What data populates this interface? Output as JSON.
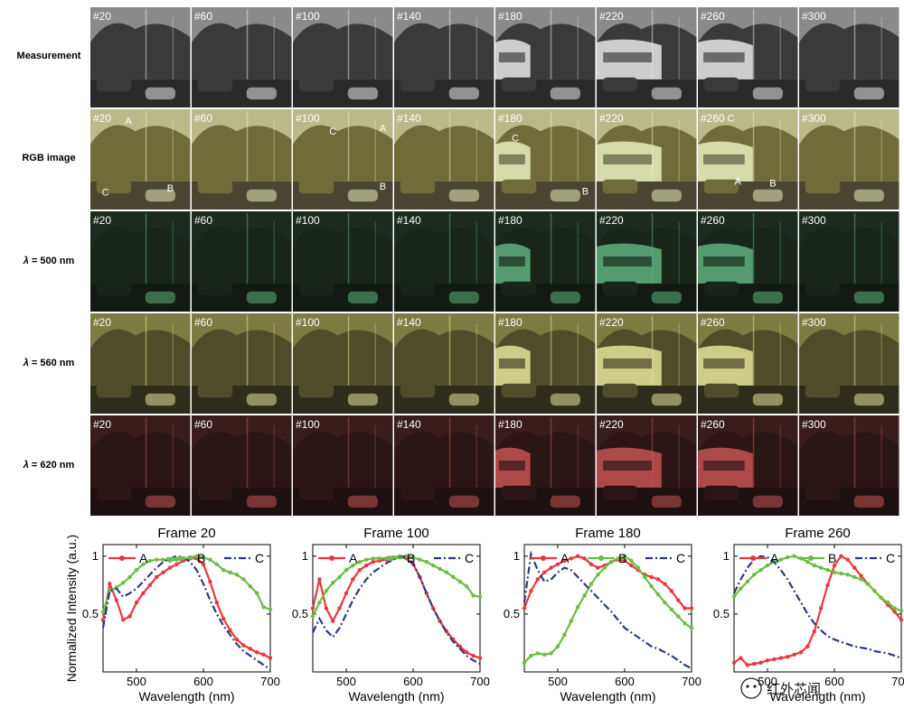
{
  "grid": {
    "row_labels": [
      {
        "pre": "Measurement",
        "lambda": "",
        "post": ""
      },
      {
        "pre": "RGB image",
        "lambda": "",
        "post": ""
      },
      {
        "pre": "",
        "lambda": "λ",
        "post": " = 500 nm"
      },
      {
        "pre": "",
        "lambda": "λ",
        "post": " = 560 nm"
      },
      {
        "pre": "",
        "lambda": "λ",
        "post": " = 620 nm"
      }
    ],
    "frame_labels": [
      "#20",
      "#60",
      "#100",
      "#140",
      "#180",
      "#220",
      "#260",
      "#300"
    ],
    "row_colors": [
      {
        "sky": "#8a8a8a",
        "tree": "#3a3a3a",
        "ground": "#2a2a2a",
        "bus": "#e8e8e8"
      },
      {
        "sky": "#b9b98a",
        "tree": "#6f6b3a",
        "ground": "#4a4530",
        "bus": "#e8efc0"
      },
      {
        "sky": "#1d2a1f",
        "tree": "#182518",
        "ground": "#121a13",
        "bus": "#5fb27d"
      },
      {
        "sky": "#7c7c42",
        "tree": "#4f4d29",
        "ground": "#2e2d1c",
        "bus": "#e3e39a"
      },
      {
        "sky": "#3a1c1c",
        "tree": "#2b1515",
        "ground": "#1d1010",
        "bus": "#c65252"
      }
    ],
    "rgb_point_labels": [
      {
        "col": 0,
        "text": "A",
        "fx": 0.38,
        "fy": 0.15
      },
      {
        "col": 0,
        "text": "B",
        "fx": 0.8,
        "fy": 0.82
      },
      {
        "col": 0,
        "text": "C",
        "fx": 0.15,
        "fy": 0.86
      },
      {
        "col": 2,
        "text": "C",
        "fx": 0.4,
        "fy": 0.25
      },
      {
        "col": 2,
        "text": "A",
        "fx": 0.9,
        "fy": 0.22
      },
      {
        "col": 2,
        "text": "B",
        "fx": 0.9,
        "fy": 0.8
      },
      {
        "col": 4,
        "text": "C",
        "fx": 0.2,
        "fy": 0.32
      },
      {
        "col": 4,
        "text": "B",
        "fx": 0.9,
        "fy": 0.85
      },
      {
        "col": 6,
        "text": "C",
        "fx": 0.33,
        "fy": 0.12
      },
      {
        "col": 6,
        "text": "A",
        "fx": 0.4,
        "fy": 0.75
      },
      {
        "col": 6,
        "text": "B",
        "fx": 0.75,
        "fy": 0.77
      }
    ]
  },
  "chart_data": [
    {
      "type": "line",
      "title": "Frame 20",
      "xlabel": "Wavelength (nm)",
      "ylabel": "Normalized Intensity (a.u.)",
      "xlim": [
        450,
        700
      ],
      "ylim": [
        0,
        1.1
      ],
      "xticks": [
        500,
        600,
        700
      ],
      "yticks": [
        0.5,
        1
      ],
      "series": [
        {
          "name": "A",
          "color": "#e8383d",
          "style": "solid-dots",
          "x": [
            450,
            460,
            470,
            480,
            490,
            500,
            510,
            520,
            530,
            540,
            550,
            560,
            570,
            580,
            590,
            600,
            610,
            620,
            630,
            640,
            650,
            660,
            670,
            680,
            690,
            700
          ],
          "y": [
            0.45,
            0.76,
            0.62,
            0.45,
            0.48,
            0.6,
            0.68,
            0.75,
            0.82,
            0.86,
            0.9,
            0.93,
            0.96,
            0.98,
            0.98,
            0.93,
            0.78,
            0.6,
            0.46,
            0.36,
            0.28,
            0.23,
            0.2,
            0.17,
            0.15,
            0.12
          ]
        },
        {
          "name": "B",
          "color": "#6cbd45",
          "style": "solid-dots",
          "x": [
            450,
            460,
            470,
            480,
            490,
            500,
            510,
            520,
            530,
            540,
            550,
            560,
            570,
            580,
            590,
            600,
            610,
            620,
            630,
            640,
            650,
            660,
            670,
            680,
            690,
            700
          ],
          "y": [
            0.52,
            0.7,
            0.73,
            0.77,
            0.82,
            0.88,
            0.93,
            0.96,
            0.97,
            0.97,
            0.96,
            0.97,
            0.98,
            0.99,
            1.0,
            0.99,
            0.97,
            0.93,
            0.88,
            0.86,
            0.84,
            0.8,
            0.74,
            0.68,
            0.56,
            0.54
          ]
        },
        {
          "name": "C",
          "color": "#2b3a86",
          "style": "dashdot",
          "x": [
            450,
            460,
            470,
            480,
            490,
            500,
            510,
            520,
            530,
            540,
            550,
            560,
            570,
            580,
            590,
            600,
            610,
            620,
            630,
            640,
            650,
            660,
            670,
            680,
            690,
            700
          ],
          "y": [
            0.38,
            0.7,
            0.72,
            0.65,
            0.68,
            0.72,
            0.78,
            0.84,
            0.9,
            0.95,
            0.98,
            1.0,
            0.99,
            0.95,
            0.88,
            0.76,
            0.62,
            0.5,
            0.4,
            0.32,
            0.24,
            0.18,
            0.14,
            0.1,
            0.06,
            0.02
          ]
        }
      ]
    },
    {
      "type": "line",
      "title": "Frame 100",
      "xlabel": "Wavelength (nm)",
      "ylabel": "",
      "xlim": [
        450,
        700
      ],
      "ylim": [
        0,
        1.1
      ],
      "xticks": [
        500,
        600,
        700
      ],
      "yticks": [
        0.5,
        1
      ],
      "series": [
        {
          "name": "A",
          "color": "#e8383d",
          "style": "solid-dots",
          "x": [
            450,
            460,
            470,
            480,
            490,
            500,
            510,
            520,
            530,
            540,
            550,
            560,
            570,
            580,
            590,
            600,
            610,
            620,
            630,
            640,
            650,
            660,
            670,
            680,
            690,
            700
          ],
          "y": [
            0.55,
            0.8,
            0.55,
            0.44,
            0.55,
            0.68,
            0.8,
            0.88,
            0.92,
            0.95,
            0.96,
            0.97,
            0.98,
            0.99,
            0.98,
            0.93,
            0.82,
            0.68,
            0.55,
            0.44,
            0.35,
            0.28,
            0.22,
            0.17,
            0.14,
            0.12
          ]
        },
        {
          "name": "B",
          "color": "#6cbd45",
          "style": "solid-dots",
          "x": [
            450,
            460,
            470,
            480,
            490,
            500,
            510,
            520,
            530,
            540,
            550,
            560,
            570,
            580,
            590,
            600,
            610,
            620,
            630,
            640,
            650,
            660,
            670,
            680,
            690,
            700
          ],
          "y": [
            0.48,
            0.6,
            0.7,
            0.77,
            0.82,
            0.88,
            0.92,
            0.95,
            0.97,
            0.98,
            0.98,
            0.98,
            0.99,
            1.0,
            1.0,
            0.99,
            0.97,
            0.95,
            0.92,
            0.89,
            0.86,
            0.82,
            0.78,
            0.74,
            0.66,
            0.65
          ]
        },
        {
          "name": "C",
          "color": "#2b3a86",
          "style": "dashdot",
          "x": [
            450,
            460,
            470,
            480,
            490,
            500,
            510,
            520,
            530,
            540,
            550,
            560,
            570,
            580,
            590,
            600,
            610,
            620,
            630,
            640,
            650,
            660,
            670,
            680,
            690,
            700
          ],
          "y": [
            0.34,
            0.46,
            0.36,
            0.3,
            0.38,
            0.5,
            0.62,
            0.72,
            0.8,
            0.86,
            0.9,
            0.94,
            0.97,
            0.99,
            1.0,
            0.94,
            0.82,
            0.68,
            0.55,
            0.44,
            0.34,
            0.26,
            0.2,
            0.14,
            0.1,
            0.07
          ]
        }
      ]
    },
    {
      "type": "line",
      "title": "Frame 180",
      "xlabel": "Wavelength (nm)",
      "ylabel": "",
      "xlim": [
        450,
        700
      ],
      "ylim": [
        0,
        1.1
      ],
      "xticks": [
        500,
        600,
        700
      ],
      "yticks": [
        0.5,
        1
      ],
      "series": [
        {
          "name": "A",
          "color": "#e8383d",
          "style": "solid-dots",
          "x": [
            450,
            460,
            470,
            480,
            490,
            500,
            510,
            520,
            530,
            540,
            550,
            560,
            570,
            580,
            590,
            600,
            610,
            620,
            630,
            640,
            650,
            660,
            670,
            680,
            690,
            700
          ],
          "y": [
            0.55,
            0.7,
            0.8,
            0.86,
            0.9,
            0.93,
            0.96,
            0.98,
            1.0,
            0.98,
            0.93,
            0.9,
            0.92,
            0.95,
            0.97,
            0.96,
            0.92,
            0.88,
            0.84,
            0.82,
            0.8,
            0.76,
            0.7,
            0.62,
            0.55,
            0.55
          ]
        },
        {
          "name": "B",
          "color": "#6cbd45",
          "style": "solid-dots",
          "x": [
            450,
            460,
            470,
            480,
            490,
            500,
            510,
            520,
            530,
            540,
            550,
            560,
            570,
            580,
            590,
            600,
            610,
            620,
            630,
            640,
            650,
            660,
            670,
            680,
            690,
            700
          ],
          "y": [
            0.08,
            0.14,
            0.16,
            0.15,
            0.16,
            0.22,
            0.32,
            0.44,
            0.56,
            0.66,
            0.76,
            0.84,
            0.9,
            0.95,
            0.98,
            1.0,
            0.96,
            0.9,
            0.82,
            0.74,
            0.67,
            0.6,
            0.54,
            0.48,
            0.42,
            0.38
          ]
        },
        {
          "name": "C",
          "color": "#2b3a86",
          "style": "dashdot",
          "x": [
            450,
            460,
            470,
            480,
            490,
            500,
            510,
            520,
            530,
            540,
            550,
            560,
            570,
            580,
            590,
            600,
            610,
            620,
            630,
            640,
            650,
            660,
            670,
            680,
            690,
            700
          ],
          "y": [
            0.6,
            1.02,
            0.88,
            0.78,
            0.8,
            0.86,
            0.9,
            0.88,
            0.82,
            0.76,
            0.7,
            0.64,
            0.58,
            0.52,
            0.45,
            0.38,
            0.34,
            0.3,
            0.26,
            0.22,
            0.2,
            0.17,
            0.14,
            0.1,
            0.06,
            0.03
          ]
        }
      ]
    },
    {
      "type": "line",
      "title": "Frame 260",
      "xlabel": "Wavelength (nm)",
      "ylabel": "",
      "xlim": [
        450,
        700
      ],
      "ylim": [
        0,
        1.1
      ],
      "xticks": [
        500,
        600,
        700
      ],
      "yticks": [
        0.5,
        1
      ],
      "series": [
        {
          "name": "A",
          "color": "#e8383d",
          "style": "solid-dots",
          "x": [
            450,
            460,
            470,
            480,
            490,
            500,
            510,
            520,
            530,
            540,
            550,
            560,
            570,
            580,
            590,
            600,
            610,
            620,
            630,
            640,
            650,
            660,
            670,
            680,
            690,
            700
          ],
          "y": [
            0.08,
            0.12,
            0.06,
            0.07,
            0.08,
            0.1,
            0.11,
            0.12,
            0.13,
            0.15,
            0.17,
            0.22,
            0.35,
            0.55,
            0.75,
            0.92,
            1.0,
            0.97,
            0.9,
            0.83,
            0.76,
            0.7,
            0.64,
            0.58,
            0.52,
            0.45
          ]
        },
        {
          "name": "B",
          "color": "#6cbd45",
          "style": "solid-dots",
          "x": [
            450,
            460,
            470,
            480,
            490,
            500,
            510,
            520,
            530,
            540,
            550,
            560,
            570,
            580,
            590,
            600,
            610,
            620,
            630,
            640,
            650,
            660,
            670,
            680,
            690,
            700
          ],
          "y": [
            0.65,
            0.72,
            0.78,
            0.84,
            0.88,
            0.92,
            0.95,
            0.97,
            0.99,
            1.0,
            0.98,
            0.95,
            0.92,
            0.9,
            0.88,
            0.86,
            0.85,
            0.84,
            0.82,
            0.8,
            0.76,
            0.7,
            0.64,
            0.6,
            0.55,
            0.53
          ]
        },
        {
          "name": "C",
          "color": "#2b3a86",
          "style": "dashdot",
          "x": [
            450,
            460,
            470,
            480,
            490,
            500,
            510,
            520,
            530,
            540,
            550,
            560,
            570,
            580,
            590,
            600,
            610,
            620,
            630,
            640,
            650,
            660,
            670,
            680,
            690,
            700
          ],
          "y": [
            0.68,
            0.8,
            0.9,
            0.97,
            1.0,
            0.99,
            0.95,
            0.88,
            0.8,
            0.7,
            0.6,
            0.5,
            0.42,
            0.36,
            0.31,
            0.28,
            0.26,
            0.24,
            0.22,
            0.21,
            0.2,
            0.18,
            0.17,
            0.16,
            0.14,
            0.12
          ]
        }
      ]
    }
  ],
  "watermark": {
    "text": "红外芯闻"
  }
}
